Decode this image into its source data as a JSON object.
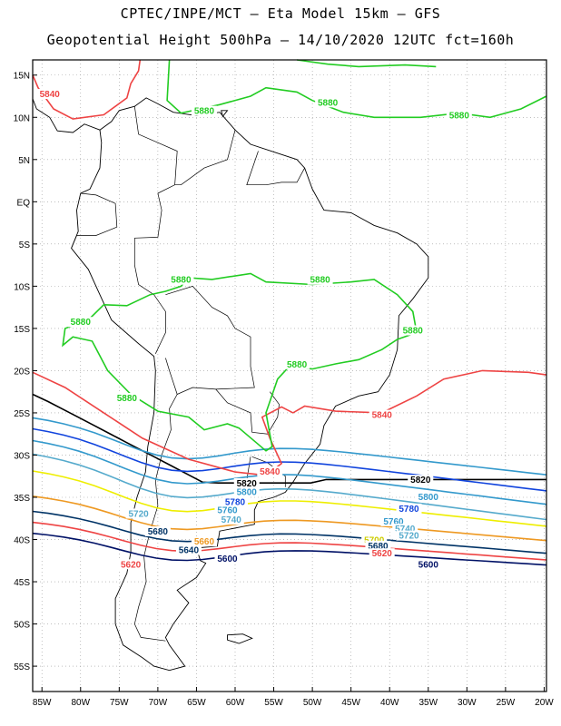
{
  "title_line1": "CPTEC/INPE/MCT –  Eta Model 15km – GFS",
  "title_line2": "Geopotential Height 500hPa – 14/10/2020 12UTC fct=160h",
  "lat_ticks": [
    "15N",
    "10N",
    "5N",
    "EQ",
    "5S",
    "10S",
    "15S",
    "20S",
    "25S",
    "30S",
    "35S",
    "40S",
    "45S",
    "50S",
    "55S"
  ],
  "lon_ticks": [
    "85W",
    "80W",
    "75W",
    "70W",
    "65W",
    "60W",
    "55W",
    "50W",
    "45W",
    "40W",
    "35W",
    "30W",
    "25W",
    "20W"
  ],
  "colors": {
    "c5880": "#22cc22",
    "c5840": "#ee4444",
    "c5820": "#000000",
    "c5800": "#3399cc",
    "c5780": "#1144dd",
    "c5760": "#3399cc",
    "c5740": "#55aacc",
    "c5720": "#eeee00",
    "c5700": "#ee9922",
    "c5680": "#003366",
    "c5660": "#003366",
    "c5620": "#ee4444",
    "c5600": "#001166"
  },
  "contour_labels": [
    {
      "text": "5840",
      "color": "#ee4444",
      "lon": -84,
      "lat": 12.5
    },
    {
      "text": "5880",
      "color": "#22cc22",
      "lon": -64,
      "lat": 10.5
    },
    {
      "text": "5880",
      "color": "#22cc22",
      "lon": -48,
      "lat": 11.5
    },
    {
      "text": "5880",
      "color": "#22cc22",
      "lon": -31,
      "lat": 10
    },
    {
      "text": "5880",
      "color": "#22cc22",
      "lon": -67,
      "lat": -9.5
    },
    {
      "text": "5880",
      "color": "#22cc22",
      "lon": -49,
      "lat": -9.5
    },
    {
      "text": "5880",
      "color": "#22cc22",
      "lon": -80,
      "lat": -14.5
    },
    {
      "text": "5880",
      "color": "#22cc22",
      "lon": -37,
      "lat": -15.5
    },
    {
      "text": "5880",
      "color": "#22cc22",
      "lon": -52,
      "lat": -19.5
    },
    {
      "text": "5880",
      "color": "#22cc22",
      "lon": -74,
      "lat": -23.5
    },
    {
      "text": "5840",
      "color": "#ee4444",
      "lon": -41,
      "lat": -25.5
    },
    {
      "text": "5840",
      "color": "#ee4444",
      "lon": -55.5,
      "lat": -32.2
    },
    {
      "text": "5820",
      "color": "#000000",
      "lon": -58.5,
      "lat": -33.6
    },
    {
      "text": "5820",
      "color": "#000000",
      "lon": -36,
      "lat": -33.2
    },
    {
      "text": "5800",
      "color": "#3399cc",
      "lon": -58.5,
      "lat": -34.6
    },
    {
      "text": "5800",
      "color": "#3399cc",
      "lon": -35,
      "lat": -35.2
    },
    {
      "text": "5780",
      "color": "#1144dd",
      "lon": -60,
      "lat": -35.8
    },
    {
      "text": "5780",
      "color": "#1144dd",
      "lon": -37.5,
      "lat": -36.6
    },
    {
      "text": "5760",
      "color": "#3399cc",
      "lon": -61,
      "lat": -36.8
    },
    {
      "text": "5760",
      "color": "#3399cc",
      "lon": -39.5,
      "lat": -38.1
    },
    {
      "text": "5740",
      "color": "#55aacc",
      "lon": -60.5,
      "lat": -37.9
    },
    {
      "text": "5740",
      "color": "#55aacc",
      "lon": -38,
      "lat": -39
    },
    {
      "text": "5720",
      "color": "#55aacc",
      "lon": -72.5,
      "lat": -37.2
    },
    {
      "text": "5720",
      "color": "#55aacc",
      "lon": -37.5,
      "lat": -39.8
    },
    {
      "text": "5700",
      "color": "#cccc00",
      "lon": -42,
      "lat": -40.3
    },
    {
      "text": "5680",
      "color": "#003366",
      "lon": -70,
      "lat": -39.3
    },
    {
      "text": "5680",
      "color": "#003366",
      "lon": -41.5,
      "lat": -41
    },
    {
      "text": "5660",
      "color": "#ee9922",
      "lon": -64,
      "lat": -40.5
    },
    {
      "text": "5640",
      "color": "#003366",
      "lon": -66,
      "lat": -41.5
    },
    {
      "text": "5620",
      "color": "#ee4444",
      "lon": -41,
      "lat": -41.9
    },
    {
      "text": "5620",
      "color": "#ee4444",
      "lon": -73.5,
      "lat": -43.2
    },
    {
      "text": "5600",
      "color": "#001166",
      "lon": -61,
      "lat": -42.5
    },
    {
      "text": "5600",
      "color": "#001166",
      "lon": -35,
      "lat": -43.2
    }
  ]
}
